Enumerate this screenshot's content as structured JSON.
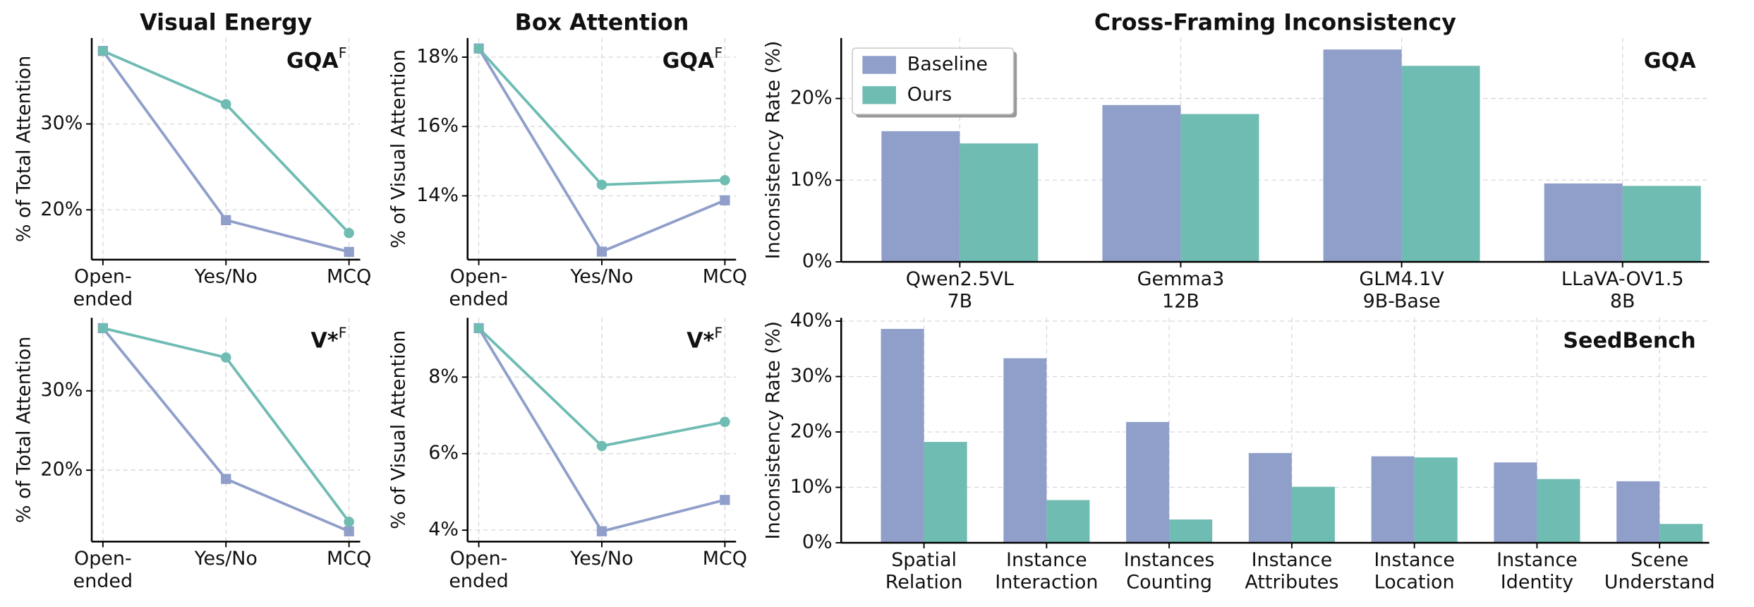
{
  "chart_data": [
    {
      "type": "line",
      "title": "Visual Energy",
      "annotation": {
        "text": "GQA",
        "sup": "F"
      },
      "ylabel": "% of Total Attention",
      "categories": [
        [
          "Open-",
          "ended"
        ],
        [
          "Yes/No"
        ],
        [
          "MCQ"
        ]
      ],
      "series": [
        {
          "color": "#8f9fca",
          "marker": "square",
          "values": [
            38.5,
            18.8,
            15.1
          ]
        },
        {
          "color": "#6fbcb3",
          "marker": "circle",
          "values": [
            38.5,
            32.3,
            17.3
          ]
        }
      ],
      "ylim": [
        14.2,
        40
      ],
      "yticks": [
        {
          "value": 20,
          "label": "20%"
        },
        {
          "value": 30,
          "label": "30%"
        }
      ],
      "grid": true
    },
    {
      "type": "line",
      "title": "Box Attention",
      "annotation": {
        "text": "GQA",
        "sup": "F"
      },
      "ylabel": "% of Visual Attention",
      "categories": [
        [
          "Open-",
          "ended"
        ],
        [
          "Yes/No"
        ],
        [
          "MCQ"
        ]
      ],
      "series": [
        {
          "color": "#8f9fca",
          "marker": "square",
          "values": [
            18.25,
            12.39,
            13.87
          ]
        },
        {
          "color": "#6fbcb3",
          "marker": "circle",
          "values": [
            18.25,
            14.32,
            14.45
          ]
        }
      ],
      "ylim": [
        12.16,
        18.55
      ],
      "yticks": [
        {
          "value": 14,
          "label": "14%"
        },
        {
          "value": 16,
          "label": "16%"
        },
        {
          "value": 18,
          "label": "18%"
        }
      ],
      "grid": true
    },
    {
      "type": "bar",
      "title": "Cross-Framing Inconsistency",
      "annotation": {
        "text": "GQA"
      },
      "ylabel": "Inconsistency Rate (%)",
      "categories": [
        [
          "Qwen2.5VL",
          "7B"
        ],
        [
          "Gemma3",
          "12B"
        ],
        [
          "GLM4.1V",
          "9B-Base"
        ],
        [
          "LLaVA-OV1.5",
          "8B"
        ]
      ],
      "series": [
        {
          "name": "Baseline",
          "color": "#8f9fca",
          "values": [
            16.0,
            19.2,
            26.0,
            9.6
          ]
        },
        {
          "name": "Ours",
          "color": "#6fbcb3",
          "values": [
            14.5,
            18.1,
            24.0,
            9.3
          ]
        }
      ],
      "ylim": [
        0,
        27.4
      ],
      "yticks": [
        {
          "value": 0,
          "label": "0%"
        },
        {
          "value": 10,
          "label": "10%"
        },
        {
          "value": 20,
          "label": "20%"
        }
      ],
      "grid": true,
      "legend": "upper left"
    },
    {
      "type": "line",
      "annotation": {
        "text": "V*",
        "sup": "F"
      },
      "ylabel": "% of Total Attention",
      "categories": [
        [
          "Open-",
          "ended"
        ],
        [
          "Yes/No"
        ],
        [
          "MCQ"
        ]
      ],
      "series": [
        {
          "color": "#8f9fca",
          "marker": "square",
          "values": [
            37.9,
            18.9,
            12.3
          ]
        },
        {
          "color": "#6fbcb3",
          "marker": "circle",
          "values": [
            37.9,
            34.2,
            13.5
          ]
        }
      ],
      "ylim": [
        11,
        39.2
      ],
      "yticks": [
        {
          "value": 20,
          "label": "20%"
        },
        {
          "value": 30,
          "label": "30%"
        }
      ],
      "grid": true
    },
    {
      "type": "line",
      "annotation": {
        "text": "V*",
        "sup": "F"
      },
      "ylabel": "% of Visual Attention",
      "categories": [
        [
          "Open-",
          "ended"
        ],
        [
          "Yes/No"
        ],
        [
          "MCQ"
        ]
      ],
      "series": [
        {
          "color": "#8f9fca",
          "marker": "square",
          "values": [
            9.28,
            3.97,
            4.79
          ]
        },
        {
          "color": "#6fbcb3",
          "marker": "circle",
          "values": [
            9.28,
            6.2,
            6.83
          ]
        }
      ],
      "ylim": [
        3.7,
        9.55
      ],
      "yticks": [
        {
          "value": 4,
          "label": "4%"
        },
        {
          "value": 6,
          "label": "6%"
        },
        {
          "value": 8,
          "label": "8%"
        }
      ],
      "grid": true
    },
    {
      "type": "bar",
      "annotation": {
        "text": "SeedBench"
      },
      "ylabel": "Inconsistency Rate (%)",
      "categories": [
        [
          "Spatial",
          "Relation"
        ],
        [
          "Instance",
          "Interaction"
        ],
        [
          "Instances",
          "Counting"
        ],
        [
          "Instance",
          "Attributes"
        ],
        [
          "Instance",
          "Location"
        ],
        [
          "Instance",
          "Identity"
        ],
        [
          "Scene",
          "Understand"
        ]
      ],
      "series": [
        {
          "color": "#8f9fca",
          "values": [
            38.6,
            33.3,
            21.8,
            16.2,
            15.6,
            14.5,
            11.1
          ]
        },
        {
          "color": "#6fbcb3",
          "values": [
            18.2,
            7.7,
            4.2,
            10.1,
            15.4,
            11.5,
            3.4
          ]
        }
      ],
      "ylim": [
        0,
        40.6
      ],
      "yticks": [
        {
          "value": 0,
          "label": "0%"
        },
        {
          "value": 10,
          "label": "10%"
        },
        {
          "value": 20,
          "label": "20%"
        },
        {
          "value": 30,
          "label": "30%"
        },
        {
          "value": 40,
          "label": "40%"
        }
      ],
      "grid": true
    }
  ]
}
